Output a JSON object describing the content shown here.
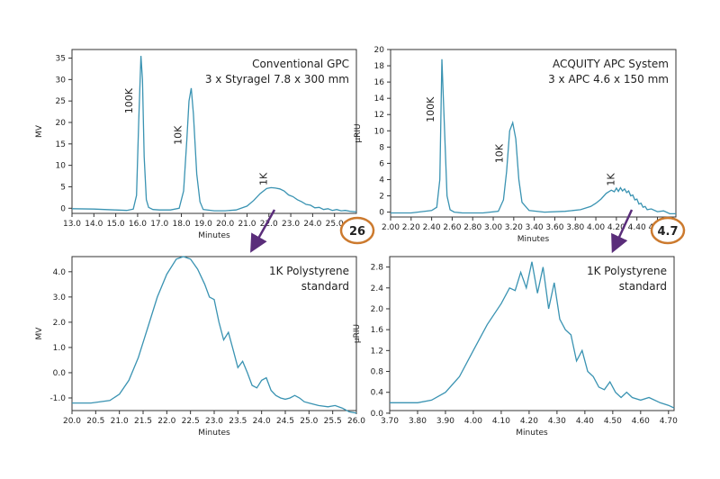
{
  "colors": {
    "trace": "#3a93b2",
    "callout_ring": "#cc7a2e",
    "arrow": "#5a2d7a"
  },
  "chart_data": [
    {
      "id": "tl",
      "type": "line",
      "annotation": [
        "Conventional GPC",
        "3 x Styragel 7.8 x 300 mm"
      ],
      "xlabel": "Minutes",
      "ylabel": "MV",
      "xlim": [
        13.0,
        26.0
      ],
      "ylim": [
        -1.2,
        37
      ],
      "xticks": [
        "13.0",
        "14.0",
        "15.0",
        "16.0",
        "17.0",
        "18.0",
        "19.0",
        "20.0",
        "21.0",
        "22.0",
        "23.0",
        "24.0",
        "25.0"
      ],
      "yticks": [
        "0",
        "5",
        "10",
        "15",
        "20",
        "25",
        "30",
        "35"
      ],
      "peak_labels": [
        {
          "text": "100K",
          "x": 15.75,
          "y": 25
        },
        {
          "text": "10K",
          "x": 18.0,
          "y": 17
        },
        {
          "text": "1K",
          "x": 21.9,
          "y": 6.8
        }
      ],
      "callout": "26",
      "x": [
        13.0,
        14.0,
        15.0,
        15.5,
        15.8,
        15.95,
        16.05,
        16.15,
        16.22,
        16.3,
        16.4,
        16.5,
        16.7,
        17.0,
        17.5,
        17.9,
        18.1,
        18.25,
        18.35,
        18.45,
        18.55,
        18.7,
        18.85,
        19.0,
        19.5,
        20.0,
        20.5,
        21.0,
        21.3,
        21.6,
        21.9,
        22.1,
        22.3,
        22.5,
        22.7,
        22.9,
        23.1,
        23.3,
        23.5,
        23.7,
        23.9,
        24.1,
        24.3,
        24.5,
        24.7,
        24.9,
        25.1,
        25.3,
        25.5,
        25.7,
        25.9,
        26.0
      ],
      "y": [
        -0.1,
        -0.2,
        -0.4,
        -0.5,
        -0.2,
        3,
        20,
        35.5,
        30,
        12,
        2,
        0.2,
        -0.3,
        -0.4,
        -0.4,
        0,
        4,
        16,
        25,
        28,
        22,
        8,
        1.5,
        -0.3,
        -0.6,
        -0.6,
        -0.4,
        0.5,
        1.8,
        3.4,
        4.6,
        4.8,
        4.7,
        4.5,
        4.0,
        3.1,
        2.7,
        2.0,
        1.5,
        0.9,
        0.7,
        0.1,
        0.2,
        -0.3,
        -0.1,
        -0.5,
        -0.3,
        -0.6,
        -0.5,
        -0.7,
        -0.8,
        -0.8
      ]
    },
    {
      "id": "tr",
      "type": "line",
      "annotation": [
        "ACQUITY APC System",
        "3 x APC 4.6 x 150 mm"
      ],
      "xlabel": "Minutes",
      "ylabel": "µRIU",
      "xlim": [
        2.0,
        4.78
      ],
      "ylim": [
        -0.6,
        20
      ],
      "xticks": [
        "2.00",
        "2.20",
        "2.40",
        "2.60",
        "2.80",
        "3.00",
        "3.20",
        "3.40",
        "3.60",
        "3.80",
        "4.00",
        "4.20",
        "4.40",
        "4.60"
      ],
      "yticks": [
        "0",
        "2",
        "4",
        "6",
        "8",
        "10",
        "12",
        "14",
        "16",
        "18",
        "20"
      ],
      "peak_labels": [
        {
          "text": "100K",
          "x": 2.42,
          "y": 12.6
        },
        {
          "text": "10K",
          "x": 3.09,
          "y": 7.2
        },
        {
          "text": "1K",
          "x": 4.18,
          "y": 4.0
        }
      ],
      "callout": "4.7",
      "x": [
        2.0,
        2.2,
        2.4,
        2.45,
        2.48,
        2.5,
        2.52,
        2.55,
        2.58,
        2.62,
        2.7,
        2.9,
        3.05,
        3.1,
        3.13,
        3.16,
        3.19,
        3.22,
        3.25,
        3.28,
        3.35,
        3.5,
        3.7,
        3.85,
        3.95,
        4.0,
        4.05,
        4.1,
        4.15,
        4.18,
        4.2,
        4.22,
        4.24,
        4.26,
        4.28,
        4.3,
        4.32,
        4.34,
        4.36,
        4.38,
        4.4,
        4.42,
        4.44,
        4.46,
        4.48,
        4.5,
        4.54,
        4.6,
        4.66,
        4.72,
        4.78
      ],
      "y": [
        -0.1,
        -0.1,
        0.2,
        0.6,
        4,
        18.8,
        12,
        2,
        0.3,
        0,
        -0.1,
        -0.1,
        0.1,
        1.5,
        5,
        10,
        11,
        9,
        4,
        1.2,
        0.2,
        0,
        0.1,
        0.3,
        0.7,
        1.1,
        1.6,
        2.3,
        2.7,
        2.5,
        2.95,
        2.55,
        3.0,
        2.6,
        2.85,
        2.4,
        2.6,
        2.0,
        2.1,
        1.5,
        1.6,
        1.0,
        1.1,
        0.6,
        0.7,
        0.3,
        0.4,
        0.05,
        0.15,
        -0.2,
        -0.2
      ]
    },
    {
      "id": "bl",
      "type": "line",
      "annotation": [
        "1K Polystyrene",
        "standard"
      ],
      "xlabel": "Minutes",
      "ylabel": "MV",
      "xlim": [
        20.0,
        26.0
      ],
      "ylim": [
        -1.5,
        4.6
      ],
      "xticks": [
        "20.0",
        "20.5",
        "21.0",
        "21.5",
        "22.0",
        "22.5",
        "23.0",
        "23.5",
        "24.0",
        "24.5",
        "25.0",
        "25.5",
        "26.0"
      ],
      "yticks": [
        "-1.0",
        "0.0",
        "1.0",
        "2.0",
        "3.0",
        "4.0"
      ],
      "x": [
        20.0,
        20.4,
        20.8,
        21.0,
        21.2,
        21.4,
        21.6,
        21.8,
        22.0,
        22.2,
        22.35,
        22.5,
        22.65,
        22.8,
        22.9,
        23.0,
        23.1,
        23.2,
        23.3,
        23.4,
        23.5,
        23.6,
        23.7,
        23.8,
        23.9,
        24.0,
        24.1,
        24.2,
        24.3,
        24.4,
        24.5,
        24.6,
        24.7,
        24.8,
        24.9,
        25.0,
        25.2,
        25.4,
        25.55,
        25.7,
        25.85,
        26.0
      ],
      "y": [
        -1.2,
        -1.2,
        -1.1,
        -0.85,
        -0.3,
        0.6,
        1.8,
        3.0,
        3.9,
        4.5,
        4.6,
        4.5,
        4.1,
        3.5,
        3.0,
        2.9,
        2.0,
        1.3,
        1.6,
        0.9,
        0.2,
        0.45,
        0.0,
        -0.5,
        -0.6,
        -0.3,
        -0.2,
        -0.7,
        -0.9,
        -1.0,
        -1.05,
        -1.0,
        -0.9,
        -1.0,
        -1.15,
        -1.2,
        -1.3,
        -1.35,
        -1.3,
        -1.4,
        -1.55,
        -1.6
      ]
    },
    {
      "id": "br",
      "type": "line",
      "annotation": [
        "1K Polystyrene",
        "standard"
      ],
      "xlabel": "Minutes",
      "ylabel": "µRIU",
      "xlim": [
        3.7,
        4.72
      ],
      "ylim": [
        0.05,
        3.0
      ],
      "xticks": [
        "3.70",
        "3.80",
        "3.90",
        "4.00",
        "4.10",
        "4.20",
        "4.30",
        "4.40",
        "4.50",
        "4.60",
        "4.70"
      ],
      "yticks": [
        "0.0",
        "0.4",
        "0.8",
        "1.2",
        "1.6",
        "2.0",
        "2.4",
        "2.8"
      ],
      "x": [
        3.7,
        3.8,
        3.85,
        3.9,
        3.95,
        4.0,
        4.05,
        4.1,
        4.13,
        4.15,
        4.17,
        4.19,
        4.21,
        4.23,
        4.25,
        4.27,
        4.29,
        4.31,
        4.33,
        4.35,
        4.37,
        4.39,
        4.41,
        4.43,
        4.45,
        4.47,
        4.49,
        4.51,
        4.53,
        4.55,
        4.57,
        4.6,
        4.63,
        4.67,
        4.7,
        4.72
      ],
      "y": [
        0.2,
        0.2,
        0.25,
        0.4,
        0.7,
        1.2,
        1.7,
        2.1,
        2.4,
        2.35,
        2.7,
        2.4,
        2.9,
        2.3,
        2.8,
        2.0,
        2.5,
        1.8,
        1.6,
        1.5,
        1.0,
        1.2,
        0.8,
        0.7,
        0.5,
        0.45,
        0.6,
        0.4,
        0.3,
        0.4,
        0.3,
        0.25,
        0.3,
        0.2,
        0.15,
        0.1
      ]
    }
  ]
}
